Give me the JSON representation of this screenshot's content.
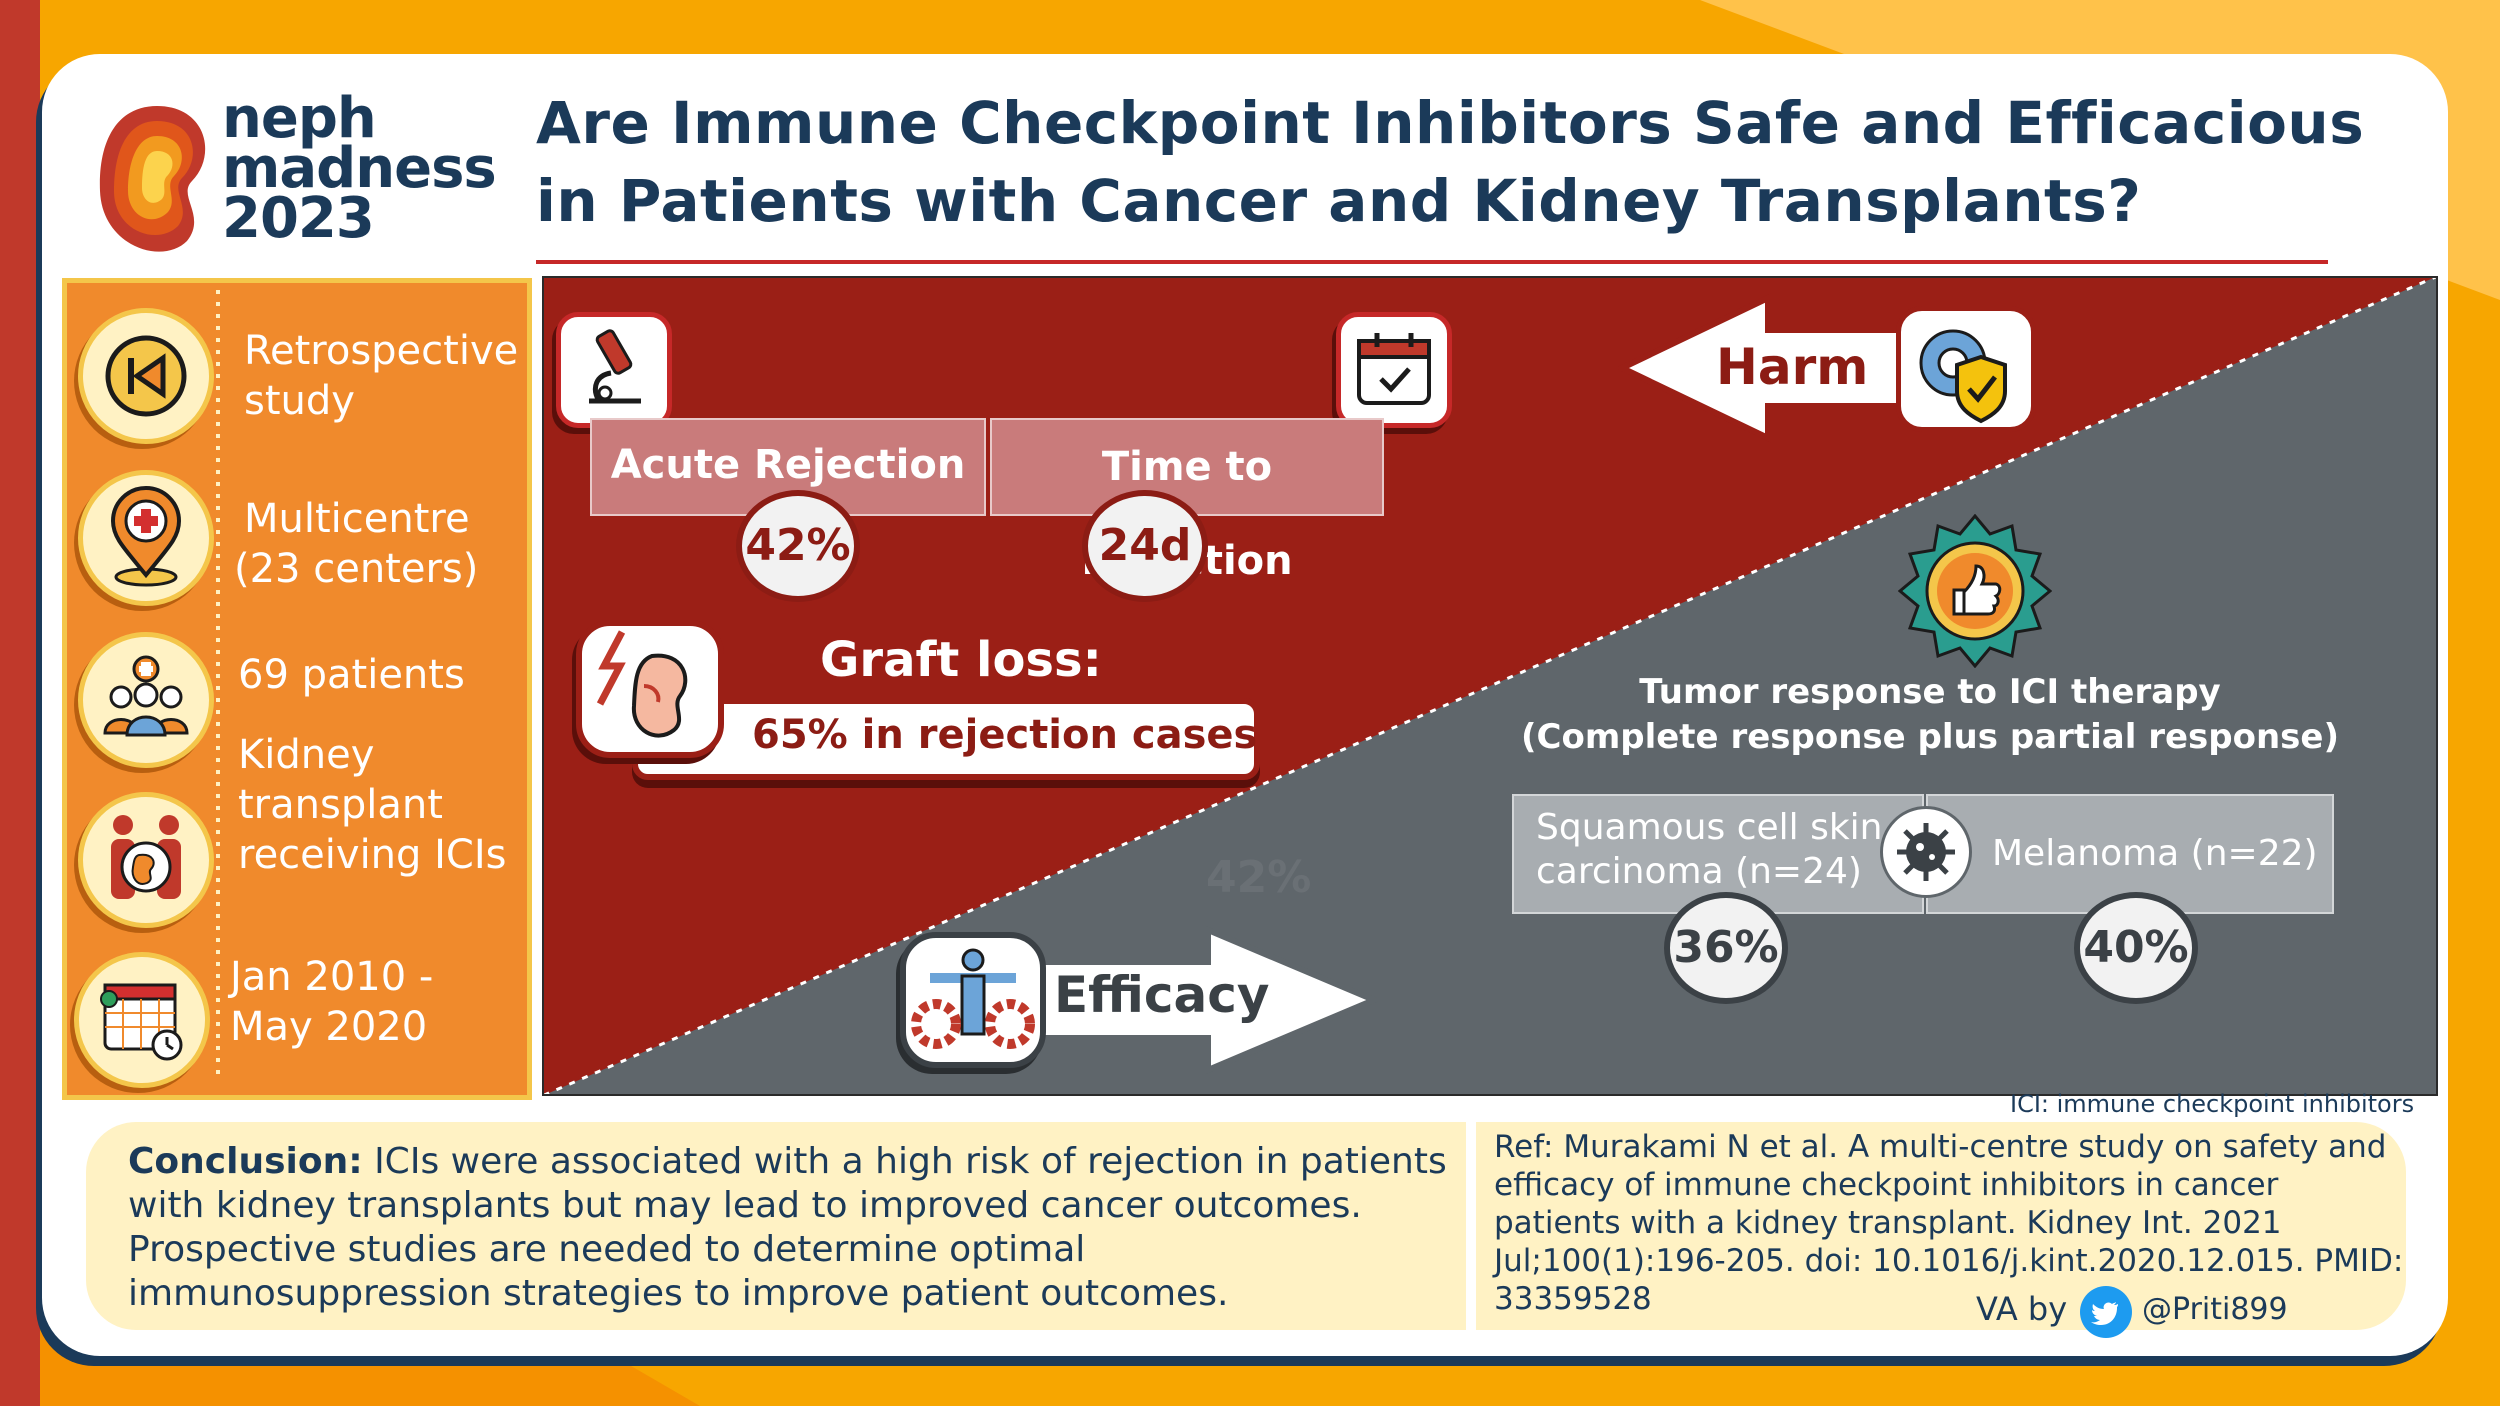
{
  "title": {
    "line1": "Are Immune Checkpoint Inhibitors Safe and Efficacious",
    "line2": "in Patients with Cancer and Kidney Transplants?"
  },
  "logo": {
    "line1": "neph",
    "line2": "madness",
    "line3": "2023"
  },
  "study": {
    "design": "Retrospective study",
    "centres_line1": "Multicentre",
    "centres_line2": "(23 centers)",
    "patients": "69 patients",
    "population": "Kidney transplant receiving ICIs",
    "period_line1": "Jan 2010 -",
    "period_line2": "May 2020"
  },
  "harm": {
    "label": "Harm",
    "acute_rejection_label": "Acute Rejection",
    "acute_rejection_value": "42%",
    "time_to_rejection_label": "Time to Rejection",
    "time_to_rejection_value": "24d",
    "graft_loss_label": "Graft loss:",
    "graft_loss_value": "65% in rejection cases",
    "watermark": "42%"
  },
  "efficacy": {
    "label": "Efficacy",
    "tumor_title_line1": "Tumor response to ICI therapy",
    "tumor_title_line2": "(Complete response plus partial response)",
    "scc_line1": "Squamous cell skin",
    "scc_line2": "carcinoma (n=24)",
    "scc_value": "36%",
    "melanoma_label": "Melanoma (n=22)",
    "melanoma_value": "40%"
  },
  "footnote": "ICI: immune checkpoint inhibitors",
  "conclusion": {
    "heading": "Conclusion:",
    "text": " ICIs were associated with a high risk of rejection in patients with kidney transplants but may lead to improved cancer outcomes. Prospective studies are needed to determine optimal immunosuppression strategies to improve patient outcomes."
  },
  "reference": "Ref: Murakami N et al. A multi-centre study on safety and efficacy of immune checkpoint inhibitors in cancer patients with a kidney transplant. Kidney Int. 2021 Jul;100(1):196-205. doi: 10.1016/j.kint.2020.12.015. PMID: 33359528",
  "credit": {
    "prefix": "VA by",
    "handle": "@Priti899"
  },
  "colors": {
    "harm_red": "#9b1f16",
    "efficacy_grey": "#5f666b",
    "navy": "#1b3a59",
    "orange": "#f08a2c",
    "cream": "#fff2c4"
  }
}
